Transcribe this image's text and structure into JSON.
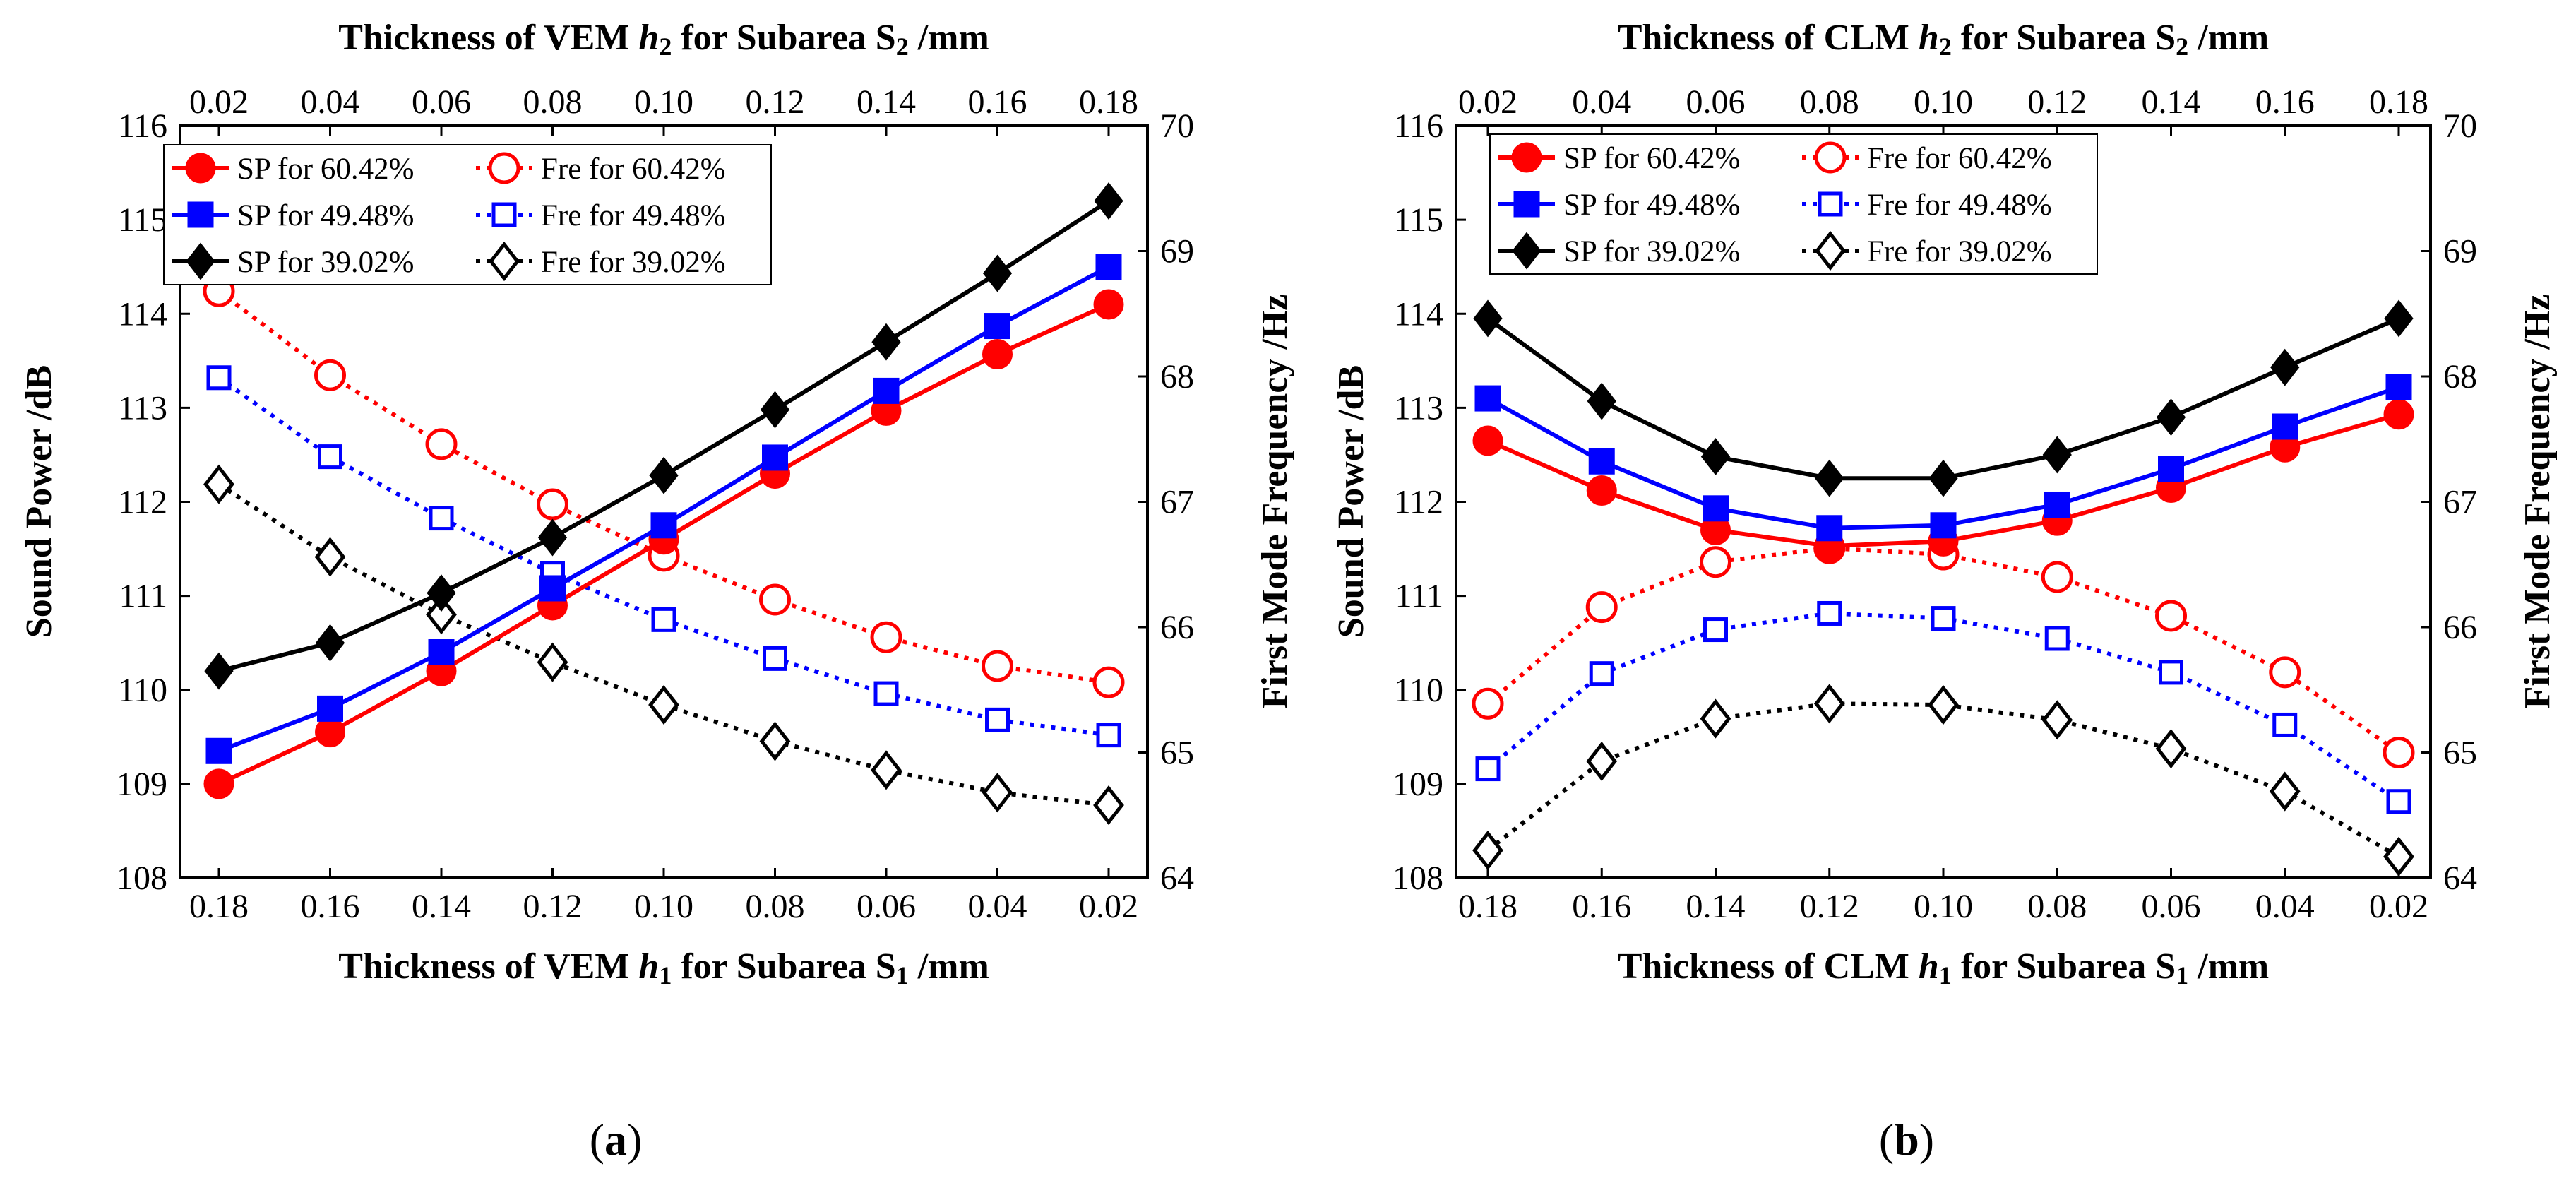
{
  "figure_labels": {
    "a_open": "(",
    "a_letter": "a",
    "a_close": ")",
    "b_open": "(",
    "b_letter": "b",
    "b_close": ")"
  },
  "legend_labels": [
    "SP for 60.42%",
    "SP for 49.48%",
    "SP for 39.02%",
    "Fre for 60.42%",
    "Fre for 49.48%",
    "Fre for 39.02%"
  ],
  "colors": {
    "series_60": "#ff0000",
    "series_49": "#0000ff",
    "series_39": "#000000"
  },
  "chart_data": [
    {
      "id": "a",
      "type": "line",
      "bottom_xlabel_pre": "Thickness of VEM",
      "bottom_xlabel_var": "h",
      "bottom_xlabel_sub": "1",
      "bottom_xlabel_post": "for Subarea S",
      "bottom_xlabel_post_sub": "1",
      "bottom_xlabel_unit": "/mm",
      "top_xlabel_pre": "Thickness  of VEM",
      "top_xlabel_var": "h",
      "top_xlabel_sub": "2",
      "top_xlabel_post": "for Subarea S",
      "top_xlabel_post_sub": "2",
      "top_xlabel_unit": "/mm",
      "ylabel_left": "Sound Power /dB",
      "ylabel_right": "First Mode Frequency /Hz",
      "x_bottom_ticks": [
        "0.18",
        "0.16",
        "0.14",
        "0.12",
        "0.10",
        "0.08",
        "0.06",
        "0.04",
        "0.02"
      ],
      "x_top_ticks": [
        "0.02",
        "0.04",
        "0.06",
        "0.08",
        "0.10",
        "0.12",
        "0.14",
        "0.16",
        "0.18"
      ],
      "yleft_ticks": [
        "108",
        "109",
        "110",
        "111",
        "112",
        "113",
        "114",
        "115",
        "116"
      ],
      "yright_ticks": [
        "64",
        "65",
        "66",
        "67",
        "68",
        "69",
        "70"
      ],
      "ylim_left": [
        108,
        116
      ],
      "ylim_right": [
        64,
        70
      ],
      "series_left": [
        {
          "name": "SP for 60.42%",
          "color": "#ff0000",
          "marker": "circle",
          "values": [
            109.0,
            109.55,
            110.2,
            110.9,
            111.6,
            112.3,
            112.97,
            113.57,
            114.1
          ]
        },
        {
          "name": "SP for 49.48%",
          "color": "#0000ff",
          "marker": "square",
          "values": [
            109.35,
            109.8,
            110.4,
            111.08,
            111.75,
            112.47,
            113.18,
            113.87,
            114.5
          ]
        },
        {
          "name": "SP for 39.02%",
          "color": "#000000",
          "marker": "diamond",
          "values": [
            110.2,
            110.5,
            111.03,
            111.62,
            112.28,
            112.98,
            113.7,
            114.43,
            115.2
          ]
        }
      ],
      "series_right": [
        {
          "name": "Fre for 60.42%",
          "color": "#ff0000",
          "marker": "circle-open",
          "values": [
            68.68,
            68.01,
            67.46,
            66.98,
            66.57,
            66.22,
            65.92,
            65.69,
            65.56
          ]
        },
        {
          "name": "Fre for 49.48%",
          "color": "#0000ff",
          "marker": "square-open",
          "values": [
            67.99,
            67.36,
            66.87,
            66.43,
            66.06,
            65.75,
            65.47,
            65.26,
            65.14
          ]
        },
        {
          "name": "Fre for 39.02%",
          "color": "#000000",
          "marker": "diamond-open",
          "values": [
            67.14,
            66.56,
            66.1,
            65.72,
            65.38,
            65.09,
            64.86,
            64.68,
            64.58
          ]
        }
      ]
    },
    {
      "id": "b",
      "type": "line",
      "bottom_xlabel_pre": "Thickness of CLM",
      "bottom_xlabel_var": "h",
      "bottom_xlabel_sub": "1",
      "bottom_xlabel_post": "for Subarea S",
      "bottom_xlabel_post_sub": "1",
      "bottom_xlabel_unit": "/mm",
      "top_xlabel_pre": "Thickness of CLM",
      "top_xlabel_var": "h",
      "top_xlabel_sub": "2",
      "top_xlabel_post": "for Subarea S",
      "top_xlabel_post_sub": "2",
      "top_xlabel_unit": "/mm",
      "ylabel_left": "Sound Power /dB",
      "ylabel_right": "First Mode Frequency /Hz",
      "x_bottom_ticks": [
        "0.18",
        "0.16",
        "0.14",
        "0.12",
        "0.10",
        "0.08",
        "0.06",
        "0.04",
        "0.02"
      ],
      "x_top_ticks": [
        "0.02",
        "0.04",
        "0.06",
        "0.08",
        "0.10",
        "0.12",
        "0.14",
        "0.16",
        "0.18"
      ],
      "yleft_ticks": [
        "108",
        "109",
        "110",
        "111",
        "112",
        "113",
        "114",
        "115",
        "116"
      ],
      "yright_ticks": [
        "64",
        "65",
        "66",
        "67",
        "68",
        "69",
        "70"
      ],
      "ylim_left": [
        108,
        116
      ],
      "ylim_right": [
        64,
        70
      ],
      "series_left": [
        {
          "name": "SP for 60.42%",
          "color": "#ff0000",
          "marker": "circle",
          "values": [
            112.65,
            112.12,
            111.7,
            111.53,
            111.58,
            111.8,
            112.15,
            112.58,
            112.93
          ]
        },
        {
          "name": "SP for 49.48%",
          "color": "#0000ff",
          "marker": "square",
          "values": [
            113.1,
            112.43,
            111.93,
            111.72,
            111.75,
            111.97,
            112.35,
            112.8,
            113.22
          ]
        },
        {
          "name": "SP for 39.02%",
          "color": "#000000",
          "marker": "diamond",
          "values": [
            113.95,
            113.07,
            112.48,
            112.25,
            112.25,
            112.5,
            112.9,
            113.43,
            113.95
          ]
        }
      ],
      "series_right": [
        {
          "name": "Fre for 60.42%",
          "color": "#ff0000",
          "marker": "circle-open",
          "values": [
            65.39,
            66.16,
            66.52,
            66.63,
            66.58,
            66.4,
            66.09,
            65.64,
            65.0
          ]
        },
        {
          "name": "Fre for 49.48%",
          "color": "#0000ff",
          "marker": "square-open",
          "values": [
            64.87,
            65.63,
            65.98,
            66.11,
            66.07,
            65.91,
            65.64,
            65.22,
            64.61
          ]
        },
        {
          "name": "Fre for 39.02%",
          "color": "#000000",
          "marker": "diamond-open",
          "values": [
            64.22,
            64.93,
            65.27,
            65.39,
            65.38,
            65.26,
            65.03,
            64.69,
            64.17
          ]
        }
      ]
    }
  ]
}
